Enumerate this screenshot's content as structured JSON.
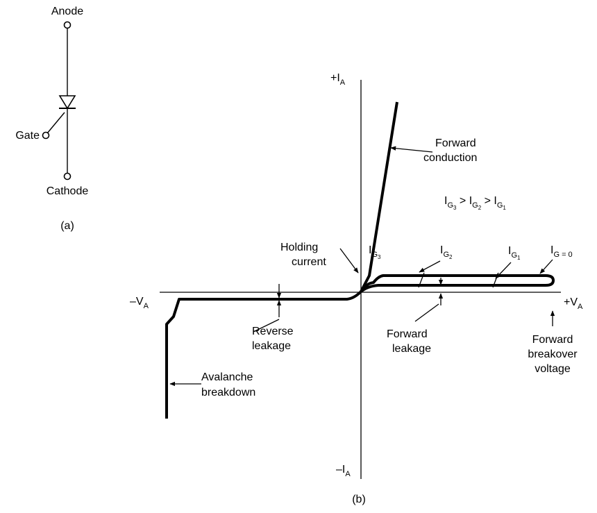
{
  "symbol": {
    "anode": "Anode",
    "gate": "Gate",
    "cathode": "Cathode",
    "caption": "(a)"
  },
  "graph": {
    "caption": "(b)",
    "axes": {
      "pos_current": {
        "sign": "+",
        "main": "I",
        "sub": "A"
      },
      "neg_current": {
        "sign": "–",
        "main": "I",
        "sub": "A"
      },
      "neg_voltage": {
        "sign": "–",
        "main": "V",
        "sub": "A"
      },
      "pos_voltage": {
        "sign": "+",
        "main": "V",
        "sub": "A"
      }
    },
    "labels": {
      "forward_conduction": [
        "Forward",
        "conduction"
      ],
      "holding_current": [
        "Holding",
        "current"
      ],
      "reverse_leakage": [
        "Reverse",
        "leakage"
      ],
      "forward_leakage": [
        "Forward",
        "leakage"
      ],
      "forward_breakover": [
        "Forward",
        "breakover",
        "voltage"
      ],
      "avalanche_breakdown": [
        "Avalanche",
        "breakdown"
      ]
    },
    "gate_currents": {
      "ig3": {
        "main": "I",
        "sub": "G",
        "subsub": "3"
      },
      "ig2": {
        "main": "I",
        "sub": "G",
        "subsub": "2"
      },
      "ig1": {
        "main": "I",
        "sub": "G",
        "subsub": "1"
      },
      "ig0": {
        "main": "I",
        "sub": "G = 0"
      }
    },
    "relation": {
      "t1": "I",
      "s1": "G",
      "n1": "3",
      "op1": " > ",
      "t2": "I",
      "s2": "G",
      "n2": "2",
      "op2": " > ",
      "t3": "I",
      "s3": "G",
      "n3": "1"
    }
  }
}
